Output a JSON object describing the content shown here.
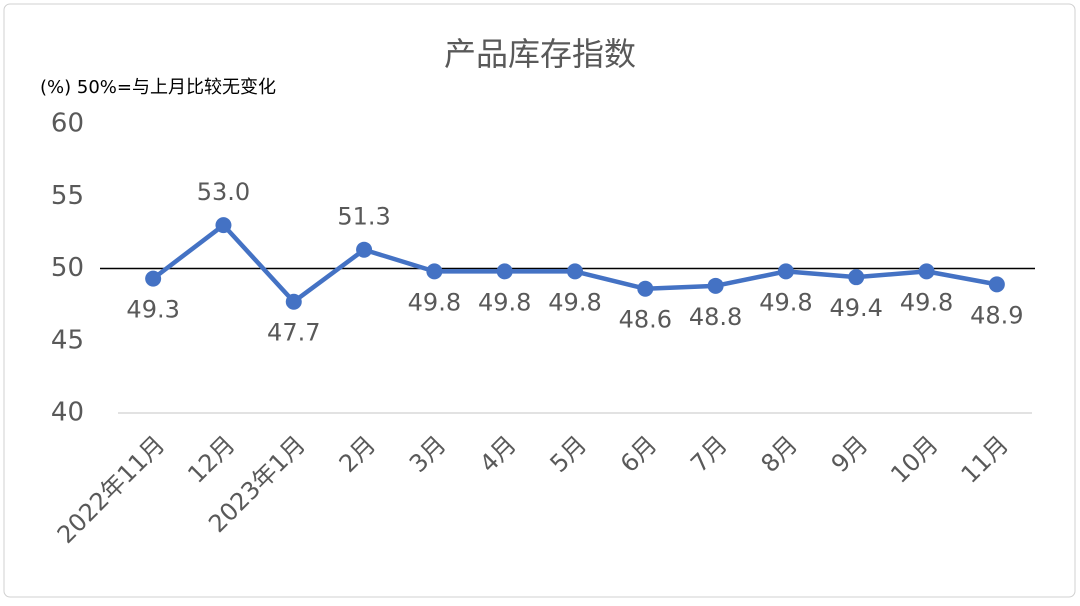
{
  "chart_data": {
    "type": "line",
    "title": "产品库存指数",
    "annotation": "(%)  50%=与上月比较无变化",
    "categories": [
      "2022年11月",
      "12月",
      "2023年1月",
      "2月",
      "3月",
      "4月",
      "5月",
      "6月",
      "7月",
      "8月",
      "9月",
      "10月",
      "11月"
    ],
    "values": [
      49.3,
      53.0,
      47.7,
      51.3,
      49.8,
      49.8,
      49.8,
      48.6,
      48.8,
      49.8,
      49.4,
      49.8,
      48.9
    ],
    "value_labels": [
      "49.3",
      "53.0",
      "47.7",
      "51.3",
      "49.8",
      "49.8",
      "49.8",
      "48.6",
      "48.8",
      "49.8",
      "49.4",
      "49.8",
      "48.9"
    ],
    "color": "#4472c4",
    "reference_line": 50,
    "ylim": [
      40,
      60
    ],
    "yticks": [
      40,
      45,
      50,
      55,
      60
    ],
    "grid": false
  }
}
